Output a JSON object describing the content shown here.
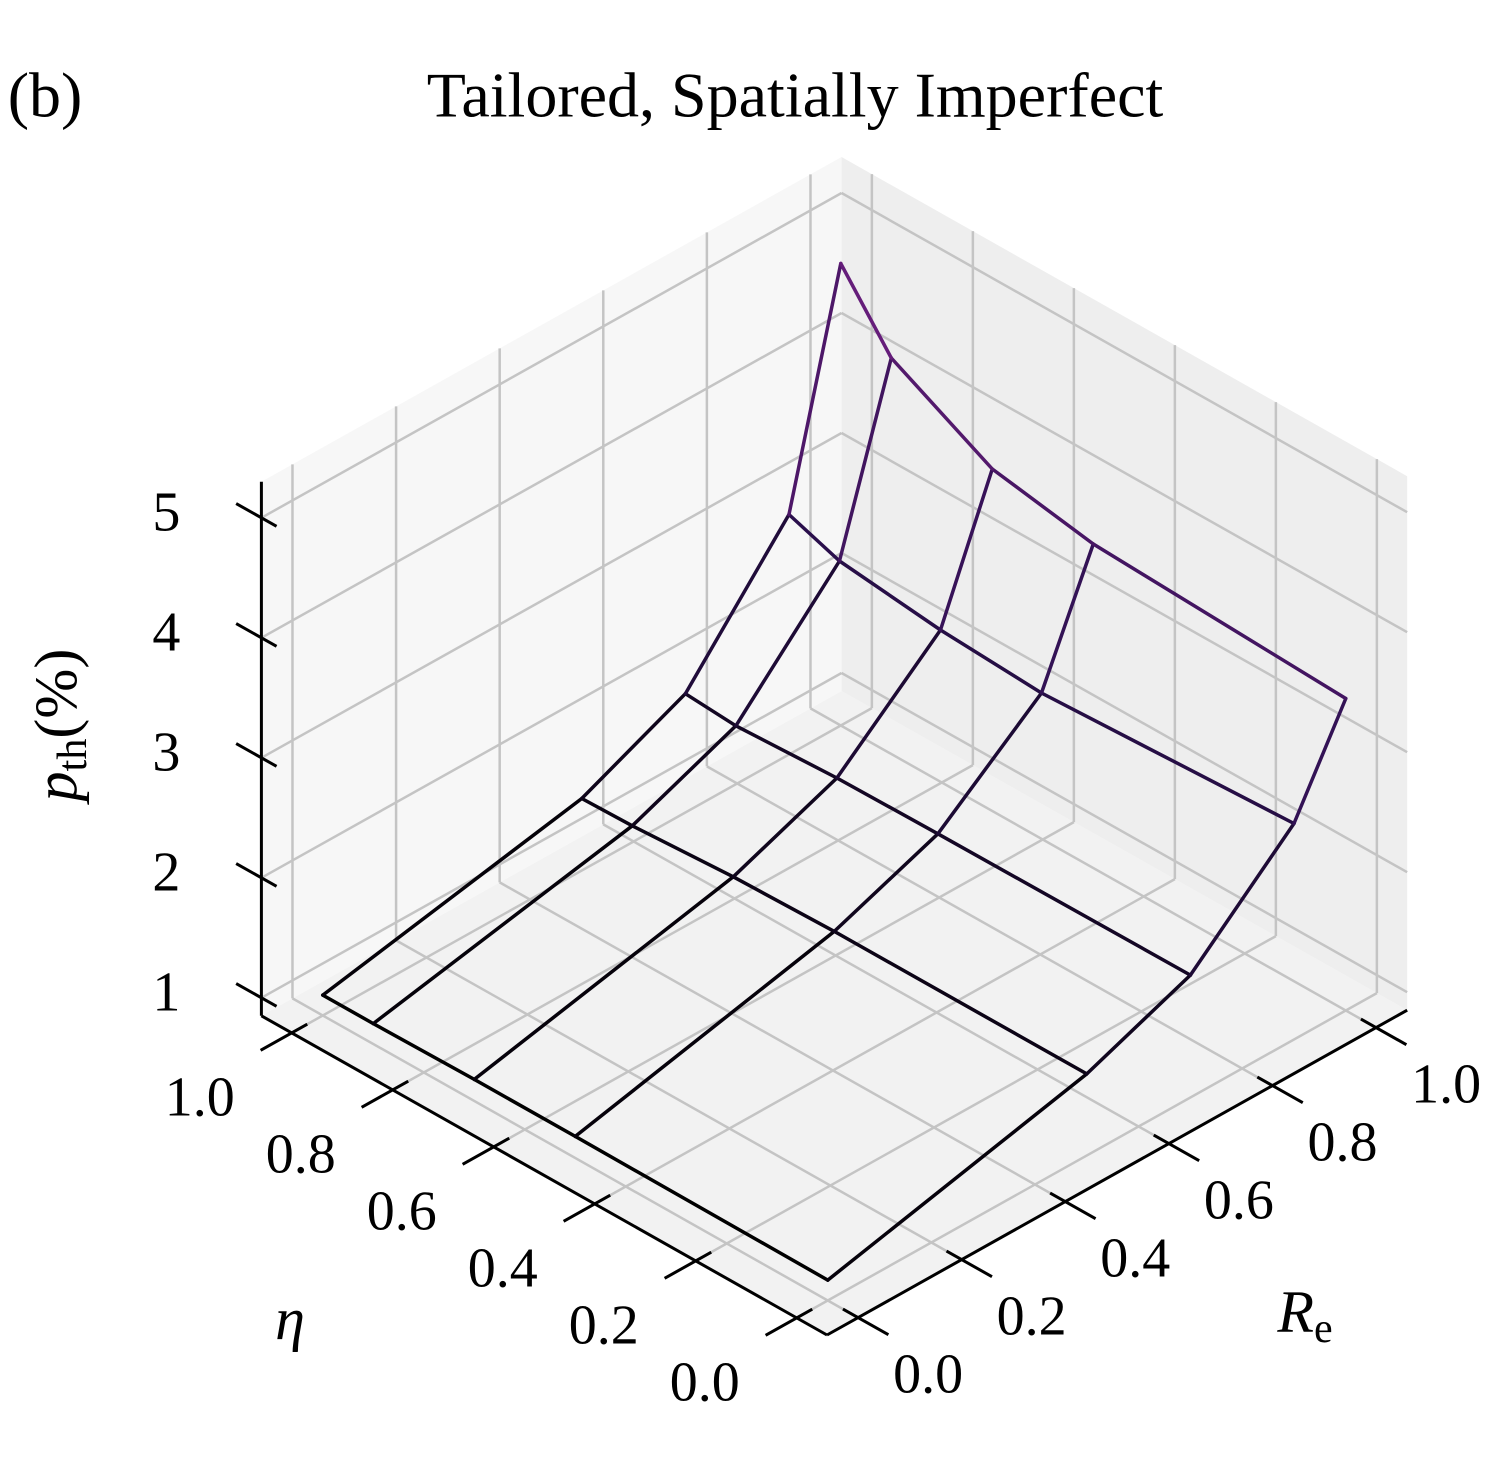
{
  "chart_data": {
    "type": "wireframe3d",
    "panel_label": "(b)",
    "title": "Tailored, Spatially Imperfect",
    "xlabel": "R",
    "xlabel_sub": "e",
    "ylabel": "η",
    "zlabel": "p",
    "zlabel_sub": "th",
    "zlabel_unit": "(%)",
    "x": [
      0,
      0.5,
      0.7,
      0.9,
      1.0
    ],
    "y": [
      0,
      0.5,
      0.7,
      0.9,
      1.0
    ],
    "z": [
      [
        1.02,
        1.03,
        1.03,
        1.02,
        1.02
      ],
      [
        1.53,
        1.53,
        1.51,
        1.46,
        1.45
      ],
      [
        1.87,
        1.86,
        1.85,
        1.81,
        1.84
      ],
      [
        2.65,
        2.55,
        2.6,
        2.7,
        2.85
      ],
      [
        3.45,
        3.55,
        3.7,
        4.15,
        4.7
      ]
    ],
    "xlim": [
      -0.06,
      1.06
    ],
    "ylim": [
      -0.06,
      1.06
    ],
    "zlim": [
      0.85,
      5.3
    ],
    "xticks": [
      {
        "value": 0,
        "label": "0.0"
      },
      0.2,
      0.4,
      0.6,
      0.8,
      {
        "value": 1,
        "label": "1.0"
      }
    ],
    "yticks": [
      {
        "value": 0,
        "label": "0.0"
      },
      0.2,
      0.4,
      0.6,
      0.8,
      {
        "value": 1,
        "label": "1.0"
      }
    ],
    "zticks": [
      1,
      2,
      3,
      4,
      5
    ],
    "grid": true,
    "colormap": [
      "#000000",
      "#2c1050",
      "#6f1f81"
    ]
  }
}
